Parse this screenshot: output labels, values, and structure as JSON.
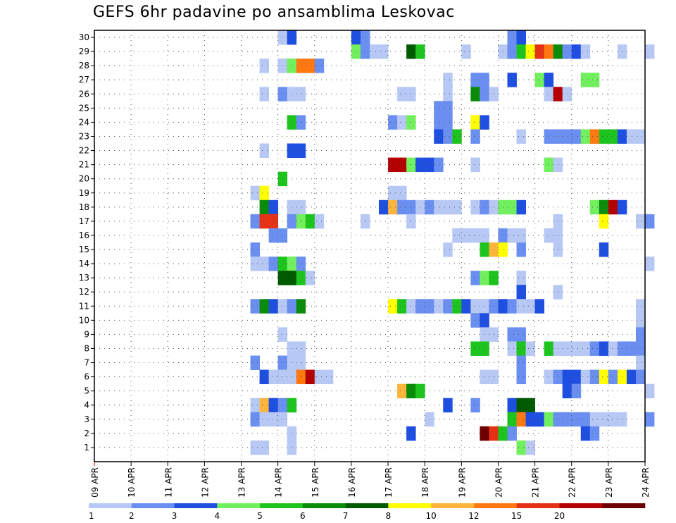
{
  "title": "GEFS 6hr padavine po ansamblima Leskovac",
  "chart_data": {
    "type": "heatmap",
    "title": "GEFS 6hr padavine po ansamblima Leskovac",
    "y_ticks": [
      1,
      2,
      3,
      4,
      5,
      6,
      7,
      8,
      9,
      10,
      11,
      12,
      13,
      14,
      15,
      16,
      17,
      18,
      19,
      20,
      21,
      22,
      23,
      24,
      25,
      26,
      27,
      28,
      29,
      30
    ],
    "x_ticks": [
      "09 APR",
      "10 APR",
      "11 APR",
      "12 APR",
      "13 APR",
      "14 APR",
      "15 APR",
      "16 APR",
      "17 APR",
      "18 APR",
      "19 APR",
      "20 APR",
      "21 APR",
      "22 APR",
      "23 APR",
      "24 APR"
    ],
    "steps_per_day": 4,
    "grid": true,
    "colorbar": {
      "tick_labels": [
        "1",
        "2",
        "3",
        "4",
        "5",
        "6",
        "7",
        "8",
        "10",
        "12",
        "15",
        "20"
      ],
      "colors": [
        "#b7c8f5",
        "#6a8ff0",
        "#1f4fe0",
        "#72ef5e",
        "#1ec41e",
        "#0a8c0a",
        "#005a00",
        "#ffff00",
        "#ffb43c",
        "#ff7810",
        "#e63214",
        "#b40000",
        "#6e0000"
      ]
    },
    "cells": [
      [
        30,
        0,
        28,
        2
      ],
      [
        30,
        0,
        29,
        1
      ],
      [
        30,
        0,
        45,
        1
      ],
      [
        30,
        0,
        46,
        2
      ],
      [
        30,
        0,
        20,
        0
      ],
      [
        30,
        0,
        21,
        2
      ],
      [
        29,
        0,
        28,
        3
      ],
      [
        29,
        0,
        29,
        1
      ],
      [
        29,
        0,
        30,
        0
      ],
      [
        29,
        0,
        31,
        0
      ],
      [
        29,
        0,
        34,
        6
      ],
      [
        29,
        0,
        35,
        4
      ],
      [
        29,
        0,
        40,
        0
      ],
      [
        29,
        0,
        44,
        0
      ],
      [
        29,
        0,
        45,
        1
      ],
      [
        29,
        0,
        46,
        4
      ],
      [
        29,
        0,
        47,
        7
      ],
      [
        29,
        0,
        48,
        10
      ],
      [
        29,
        0,
        49,
        9
      ],
      [
        29,
        0,
        50,
        5
      ],
      [
        29,
        0,
        51,
        1
      ],
      [
        29,
        0,
        52,
        2
      ],
      [
        29,
        0,
        53,
        0
      ],
      [
        29,
        0,
        57,
        0
      ],
      [
        29,
        0,
        60,
        0
      ],
      [
        28,
        0,
        18,
        0
      ],
      [
        28,
        0,
        20,
        0
      ],
      [
        28,
        0,
        21,
        3
      ],
      [
        28,
        0,
        22,
        9
      ],
      [
        28,
        0,
        23,
        9
      ],
      [
        28,
        0,
        24,
        1
      ],
      [
        27,
        0,
        38,
        0
      ],
      [
        27,
        0,
        41,
        1
      ],
      [
        27,
        0,
        42,
        1
      ],
      [
        27,
        0,
        45,
        2
      ],
      [
        27,
        0,
        48,
        3
      ],
      [
        27,
        0,
        49,
        2
      ],
      [
        27,
        0,
        53,
        3
      ],
      [
        27,
        0,
        54,
        3
      ],
      [
        26,
        0,
        18,
        0
      ],
      [
        26,
        0,
        20,
        1
      ],
      [
        26,
        0,
        21,
        0
      ],
      [
        26,
        0,
        22,
        0
      ],
      [
        26,
        0,
        33,
        0
      ],
      [
        26,
        0,
        34,
        0
      ],
      [
        26,
        0,
        38,
        0
      ],
      [
        26,
        0,
        41,
        5
      ],
      [
        26,
        0,
        42,
        1
      ],
      [
        26,
        0,
        43,
        0
      ],
      [
        26,
        0,
        49,
        0
      ],
      [
        26,
        0,
        50,
        11
      ],
      [
        26,
        0,
        51,
        0
      ],
      [
        25,
        0,
        37,
        1
      ],
      [
        25,
        0,
        38,
        1
      ],
      [
        24,
        0,
        21,
        4
      ],
      [
        24,
        0,
        22,
        1
      ],
      [
        24,
        0,
        32,
        1
      ],
      [
        24,
        0,
        33,
        0
      ],
      [
        24,
        0,
        34,
        3
      ],
      [
        24,
        0,
        37,
        1
      ],
      [
        24,
        0,
        38,
        1
      ],
      [
        24,
        0,
        41,
        7
      ],
      [
        24,
        0,
        42,
        2
      ],
      [
        23,
        0,
        37,
        2
      ],
      [
        23,
        0,
        38,
        1
      ],
      [
        23,
        0,
        39,
        4
      ],
      [
        23,
        0,
        41,
        1
      ],
      [
        23,
        0,
        46,
        0
      ],
      [
        23,
        0,
        49,
        1
      ],
      [
        23,
        0,
        50,
        1
      ],
      [
        23,
        0,
        51,
        1
      ],
      [
        23,
        0,
        52,
        1
      ],
      [
        23,
        0,
        53,
        3
      ],
      [
        23,
        0,
        54,
        9
      ],
      [
        23,
        0,
        55,
        4
      ],
      [
        23,
        0,
        56,
        4
      ],
      [
        23,
        0,
        57,
        2
      ],
      [
        23,
        0,
        58,
        0
      ],
      [
        23,
        0,
        59,
        0
      ],
      [
        22,
        0,
        18,
        0
      ],
      [
        22,
        0,
        21,
        2
      ],
      [
        22,
        0,
        22,
        2
      ],
      [
        21,
        0,
        32,
        11
      ],
      [
        21,
        0,
        33,
        11
      ],
      [
        21,
        0,
        34,
        3
      ],
      [
        21,
        0,
        35,
        2
      ],
      [
        21,
        0,
        36,
        2
      ],
      [
        21,
        0,
        37,
        1
      ],
      [
        21,
        0,
        41,
        0
      ],
      [
        21,
        0,
        49,
        3
      ],
      [
        21,
        0,
        50,
        0
      ],
      [
        20,
        0,
        20,
        4
      ],
      [
        19,
        0,
        17,
        0
      ],
      [
        19,
        0,
        18,
        7
      ],
      [
        19,
        0,
        32,
        0
      ],
      [
        19,
        0,
        33,
        0
      ],
      [
        18,
        0,
        18,
        5
      ],
      [
        18,
        0,
        19,
        2
      ],
      [
        18,
        0,
        21,
        0
      ],
      [
        18,
        0,
        22,
        0
      ],
      [
        18,
        0,
        31,
        2
      ],
      [
        18,
        0,
        32,
        8
      ],
      [
        18,
        0,
        33,
        1
      ],
      [
        18,
        0,
        34,
        1
      ],
      [
        18,
        0,
        35,
        0
      ],
      [
        18,
        0,
        36,
        1
      ],
      [
        18,
        0,
        37,
        0
      ],
      [
        18,
        0,
        38,
        0
      ],
      [
        18,
        0,
        39,
        0
      ],
      [
        18,
        0,
        41,
        0
      ],
      [
        18,
        0,
        42,
        1
      ],
      [
        18,
        0,
        43,
        0
      ],
      [
        18,
        0,
        44,
        3
      ],
      [
        18,
        0,
        45,
        3
      ],
      [
        18,
        0,
        46,
        2
      ],
      [
        18,
        0,
        54,
        3
      ],
      [
        18,
        0,
        55,
        5
      ],
      [
        18,
        0,
        56,
        11
      ],
      [
        18,
        0,
        57,
        2
      ],
      [
        17,
        0,
        17,
        1
      ],
      [
        17,
        0,
        18,
        10
      ],
      [
        17,
        0,
        19,
        10
      ],
      [
        17,
        0,
        21,
        1
      ],
      [
        17,
        0,
        22,
        3
      ],
      [
        17,
        0,
        23,
        4
      ],
      [
        17,
        0,
        24,
        0
      ],
      [
        17,
        0,
        29,
        0
      ],
      [
        17,
        0,
        34,
        0
      ],
      [
        17,
        0,
        50,
        0
      ],
      [
        17,
        0,
        55,
        7
      ],
      [
        17,
        0,
        59,
        0
      ],
      [
        17,
        0,
        60,
        1
      ],
      [
        16,
        0,
        19,
        1
      ],
      [
        16,
        0,
        20,
        1
      ],
      [
        16,
        0,
        39,
        0
      ],
      [
        16,
        0,
        40,
        0
      ],
      [
        16,
        0,
        41,
        0
      ],
      [
        16,
        0,
        42,
        0
      ],
      [
        16,
        0,
        44,
        1
      ],
      [
        16,
        0,
        45,
        0
      ],
      [
        16,
        0,
        46,
        0
      ],
      [
        16,
        0,
        49,
        0
      ],
      [
        16,
        0,
        50,
        0
      ],
      [
        15,
        0,
        17,
        1
      ],
      [
        15,
        0,
        38,
        0
      ],
      [
        15,
        0,
        42,
        4
      ],
      [
        15,
        0,
        43,
        8
      ],
      [
        15,
        0,
        44,
        7
      ],
      [
        15,
        0,
        46,
        1
      ],
      [
        15,
        0,
        50,
        0
      ],
      [
        15,
        0,
        55,
        2
      ],
      [
        14,
        0,
        17,
        0
      ],
      [
        14,
        0,
        18,
        0
      ],
      [
        14,
        0,
        19,
        1
      ],
      [
        14,
        0,
        20,
        4
      ],
      [
        14,
        0,
        21,
        3
      ],
      [
        14,
        0,
        22,
        1
      ],
      [
        14,
        0,
        60,
        0
      ],
      [
        13,
        0,
        20,
        6
      ],
      [
        13,
        0,
        21,
        6
      ],
      [
        13,
        0,
        22,
        4
      ],
      [
        13,
        0,
        23,
        0
      ],
      [
        13,
        0,
        41,
        1
      ],
      [
        13,
        0,
        42,
        3
      ],
      [
        13,
        0,
        43,
        4
      ],
      [
        13,
        0,
        46,
        0
      ],
      [
        12,
        0,
        46,
        2
      ],
      [
        12,
        0,
        50,
        0
      ],
      [
        11,
        0,
        17,
        1
      ],
      [
        11,
        0,
        18,
        5
      ],
      [
        11,
        0,
        19,
        2
      ],
      [
        11,
        0,
        20,
        0
      ],
      [
        11,
        0,
        21,
        1
      ],
      [
        11,
        0,
        22,
        5
      ],
      [
        11,
        0,
        32,
        7
      ],
      [
        11,
        0,
        33,
        4
      ],
      [
        11,
        0,
        34,
        0
      ],
      [
        11,
        0,
        35,
        1
      ],
      [
        11,
        0,
        36,
        1
      ],
      [
        11,
        0,
        37,
        0
      ],
      [
        11,
        0,
        38,
        1
      ],
      [
        11,
        0,
        39,
        4
      ],
      [
        11,
        0,
        40,
        2
      ],
      [
        11,
        0,
        41,
        0
      ],
      [
        11,
        0,
        42,
        0
      ],
      [
        11,
        0,
        43,
        1
      ],
      [
        11,
        0,
        44,
        2
      ],
      [
        11,
        0,
        45,
        1
      ],
      [
        11,
        0,
        46,
        0
      ],
      [
        11,
        0,
        47,
        0
      ],
      [
        11,
        0,
        48,
        2
      ],
      [
        11,
        0,
        59,
        0
      ],
      [
        10,
        0,
        41,
        1
      ],
      [
        10,
        0,
        42,
        2
      ],
      [
        10,
        0,
        59,
        0
      ],
      [
        9,
        0,
        20,
        0
      ],
      [
        9,
        0,
        42,
        0
      ],
      [
        9,
        0,
        43,
        0
      ],
      [
        9,
        0,
        45,
        1
      ],
      [
        9,
        0,
        46,
        1
      ],
      [
        9,
        0,
        59,
        1
      ],
      [
        8,
        0,
        21,
        0
      ],
      [
        8,
        0,
        22,
        0
      ],
      [
        8,
        0,
        41,
        4
      ],
      [
        8,
        0,
        42,
        4
      ],
      [
        8,
        0,
        45,
        0
      ],
      [
        8,
        0,
        46,
        4
      ],
      [
        8,
        0,
        47,
        0
      ],
      [
        8,
        0,
        49,
        4
      ],
      [
        8,
        0,
        50,
        0
      ],
      [
        8,
        0,
        51,
        0
      ],
      [
        8,
        0,
        52,
        0
      ],
      [
        8,
        0,
        53,
        0
      ],
      [
        8,
        0,
        54,
        1
      ],
      [
        8,
        0,
        55,
        2
      ],
      [
        8,
        0,
        56,
        0
      ],
      [
        8,
        0,
        57,
        1
      ],
      [
        8,
        0,
        58,
        1
      ],
      [
        8,
        0,
        59,
        1
      ],
      [
        7,
        0,
        17,
        1
      ],
      [
        7,
        0,
        20,
        1
      ],
      [
        7,
        0,
        21,
        0
      ],
      [
        7,
        0,
        22,
        0
      ],
      [
        7,
        0,
        46,
        1
      ],
      [
        7,
        0,
        59,
        0
      ],
      [
        6,
        0,
        18,
        2
      ],
      [
        6,
        0,
        19,
        0
      ],
      [
        6,
        0,
        20,
        0
      ],
      [
        6,
        0,
        21,
        0
      ],
      [
        6,
        0,
        22,
        9
      ],
      [
        6,
        0,
        23,
        11
      ],
      [
        6,
        0,
        24,
        0
      ],
      [
        6,
        0,
        25,
        0
      ],
      [
        6,
        0,
        42,
        0
      ],
      [
        6,
        0,
        43,
        0
      ],
      [
        6,
        0,
        46,
        1
      ],
      [
        6,
        0,
        49,
        0
      ],
      [
        6,
        0,
        50,
        1
      ],
      [
        6,
        0,
        51,
        2
      ],
      [
        6,
        0,
        52,
        2
      ],
      [
        6,
        0,
        53,
        0
      ],
      [
        6,
        0,
        54,
        1
      ],
      [
        6,
        0,
        55,
        7
      ],
      [
        6,
        0,
        56,
        1
      ],
      [
        6,
        0,
        57,
        7
      ],
      [
        6,
        0,
        58,
        2
      ],
      [
        6,
        0,
        59,
        1
      ],
      [
        5,
        0,
        33,
        8
      ],
      [
        5,
        0,
        34,
        5
      ],
      [
        5,
        0,
        35,
        4
      ],
      [
        5,
        0,
        51,
        2
      ],
      [
        5,
        0,
        52,
        1
      ],
      [
        5,
        0,
        60,
        0
      ],
      [
        4,
        0,
        17,
        0
      ],
      [
        4,
        0,
        18,
        8
      ],
      [
        4,
        0,
        19,
        2
      ],
      [
        4,
        0,
        20,
        1
      ],
      [
        4,
        0,
        21,
        4
      ],
      [
        4,
        0,
        38,
        2
      ],
      [
        4,
        0,
        41,
        1
      ],
      [
        4,
        0,
        45,
        2
      ],
      [
        4,
        0,
        46,
        6
      ],
      [
        4,
        0,
        47,
        6
      ],
      [
        3,
        0,
        17,
        1
      ],
      [
        3,
        0,
        18,
        0
      ],
      [
        3,
        0,
        19,
        0
      ],
      [
        3,
        0,
        20,
        0
      ],
      [
        3,
        0,
        36,
        0
      ],
      [
        3,
        0,
        45,
        4
      ],
      [
        3,
        0,
        46,
        9
      ],
      [
        3,
        0,
        47,
        2
      ],
      [
        3,
        0,
        48,
        2
      ],
      [
        3,
        0,
        49,
        3
      ],
      [
        3,
        0,
        50,
        1
      ],
      [
        3,
        0,
        51,
        1
      ],
      [
        3,
        0,
        52,
        1
      ],
      [
        3,
        0,
        53,
        1
      ],
      [
        3,
        0,
        54,
        0
      ],
      [
        3,
        0,
        55,
        0
      ],
      [
        3,
        0,
        56,
        0
      ],
      [
        3,
        0,
        57,
        0
      ],
      [
        3,
        0,
        60,
        1
      ],
      [
        2,
        0,
        21,
        0
      ],
      [
        2,
        0,
        34,
        2
      ],
      [
        2,
        0,
        42,
        12
      ],
      [
        2,
        0,
        43,
        10
      ],
      [
        2,
        0,
        44,
        4
      ],
      [
        2,
        0,
        45,
        1
      ],
      [
        2,
        0,
        53,
        2
      ],
      [
        2,
        0,
        54,
        1
      ],
      [
        1,
        0,
        17,
        0
      ],
      [
        1,
        0,
        18,
        0
      ],
      [
        1,
        0,
        21,
        0
      ],
      [
        1,
        0,
        46,
        3
      ],
      [
        1,
        0,
        47,
        0
      ]
    ]
  }
}
